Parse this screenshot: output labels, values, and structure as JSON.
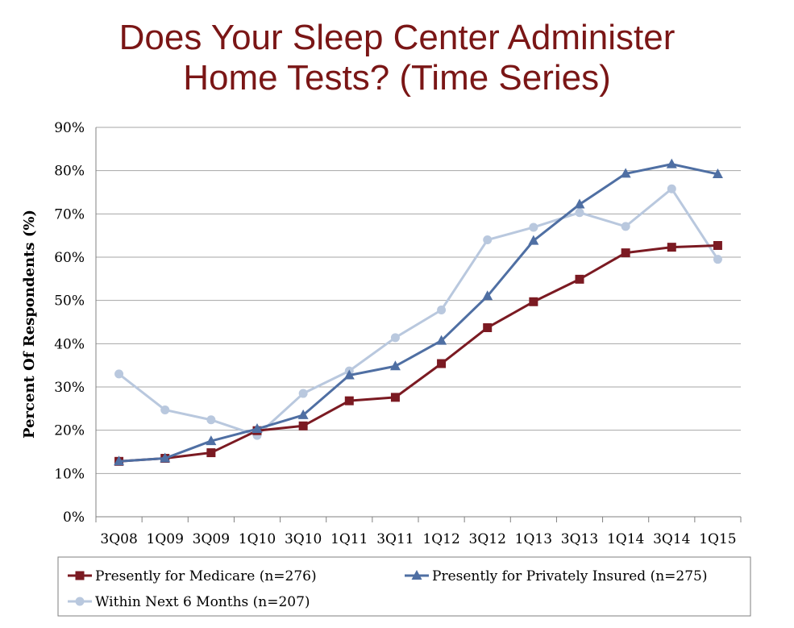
{
  "title_lines": [
    "Does Your Sleep Center Administer",
    "Home Tests? (Time Series)"
  ],
  "chart_data": {
    "type": "line",
    "title": "Does Your Sleep Center Administer Home Tests? (Time Series)",
    "xlabel": "",
    "ylabel": "Percent Of Respondents (%)",
    "ylim": [
      0,
      90
    ],
    "yticks": [
      "0%",
      "10%",
      "20%",
      "30%",
      "40%",
      "50%",
      "60%",
      "70%",
      "80%",
      "90%"
    ],
    "grid": true,
    "legend_placement": "bottom",
    "categories": [
      "3Q08",
      "1Q09",
      "3Q09",
      "1Q10",
      "3Q10",
      "1Q11",
      "3Q11",
      "1Q12",
      "3Q12",
      "1Q13",
      "3Q13",
      "1Q14",
      "3Q14",
      "1Q15"
    ],
    "series": [
      {
        "name": "Presently for Medicare (n=276)",
        "color": "#7b1a22",
        "marker": "square",
        "values": [
          12.8,
          13.5,
          14.8,
          19.9,
          21.0,
          26.8,
          27.6,
          35.4,
          43.7,
          49.7,
          54.9,
          61.0,
          62.3,
          62.7
        ]
      },
      {
        "name": "Presently for Privately Insured (n=275)",
        "color": "#4f6fa3",
        "marker": "triangle",
        "values": [
          12.8,
          13.5,
          17.5,
          20.3,
          23.5,
          32.7,
          34.8,
          40.7,
          51.0,
          63.8,
          72.2,
          79.3,
          81.5,
          79.2
        ]
      },
      {
        "name": "Within Next 6 Months (n=207)",
        "color": "#b9c8de",
        "marker": "circle",
        "values": [
          33.0,
          24.7,
          22.4,
          18.8,
          28.5,
          33.7,
          41.4,
          47.8,
          64.0,
          66.9,
          70.3,
          67.1,
          75.8,
          59.5
        ]
      }
    ]
  }
}
